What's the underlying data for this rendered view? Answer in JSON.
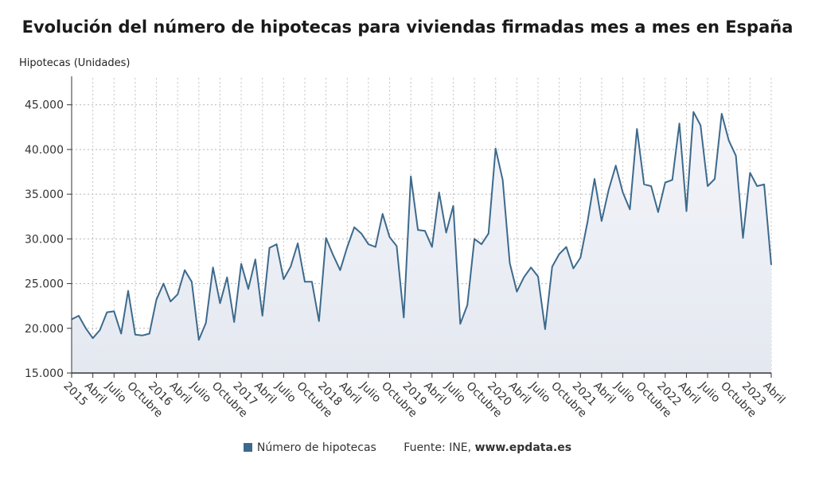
{
  "chart_data": {
    "type": "area",
    "title": "Evolución del número de hipotecas para viviendas firmadas mes a mes en España",
    "ylabel": "Hipotecas (Unidades)",
    "ylim": [
      15000,
      48000
    ],
    "yticks": [
      {
        "value": 15000,
        "label": "15.000"
      },
      {
        "value": 20000,
        "label": "20.000"
      },
      {
        "value": 25000,
        "label": "25.000"
      },
      {
        "value": 30000,
        "label": "30.000"
      },
      {
        "value": 35000,
        "label": "35.000"
      },
      {
        "value": 40000,
        "label": "40.000"
      },
      {
        "value": 45000,
        "label": "45.000"
      }
    ],
    "xticks": [
      {
        "index": 0,
        "label": "2015"
      },
      {
        "index": 3,
        "label": "Abril"
      },
      {
        "index": 6,
        "label": "Julio"
      },
      {
        "index": 9,
        "label": "Octubre"
      },
      {
        "index": 12,
        "label": "2016"
      },
      {
        "index": 15,
        "label": "Abril"
      },
      {
        "index": 18,
        "label": "Julio"
      },
      {
        "index": 21,
        "label": "Octubre"
      },
      {
        "index": 24,
        "label": "2017"
      },
      {
        "index": 27,
        "label": "Abril"
      },
      {
        "index": 30,
        "label": "Julio"
      },
      {
        "index": 33,
        "label": "Octubre"
      },
      {
        "index": 36,
        "label": "2018"
      },
      {
        "index": 39,
        "label": "Abril"
      },
      {
        "index": 42,
        "label": "Julio"
      },
      {
        "index": 45,
        "label": "Octubre"
      },
      {
        "index": 48,
        "label": "2019"
      },
      {
        "index": 51,
        "label": "Abril"
      },
      {
        "index": 54,
        "label": "Julio"
      },
      {
        "index": 57,
        "label": "Octubre"
      },
      {
        "index": 60,
        "label": "2020"
      },
      {
        "index": 63,
        "label": "Abril"
      },
      {
        "index": 66,
        "label": "Julio"
      },
      {
        "index": 69,
        "label": "Octubre"
      },
      {
        "index": 72,
        "label": "2021"
      },
      {
        "index": 75,
        "label": "Abril"
      },
      {
        "index": 78,
        "label": "Julio"
      },
      {
        "index": 81,
        "label": "Octubre"
      },
      {
        "index": 84,
        "label": "2022"
      },
      {
        "index": 87,
        "label": "Abril"
      },
      {
        "index": 90,
        "label": "Julio"
      },
      {
        "index": 93,
        "label": "Octubre"
      },
      {
        "index": 96,
        "label": "2023"
      },
      {
        "index": 99,
        "label": "Abril"
      }
    ],
    "series": [
      {
        "name": "Número de hipotecas",
        "color": "#3d6a8c",
        "values": [
          21000,
          21400,
          20000,
          18900,
          19800,
          21800,
          21900,
          19400,
          24200,
          19300,
          19200,
          19400,
          23200,
          25000,
          23000,
          23800,
          26500,
          25200,
          18700,
          20600,
          26800,
          22800,
          25700,
          20700,
          27200,
          24400,
          27700,
          21400,
          29000,
          29400,
          25500,
          26900,
          29500,
          25200,
          25200,
          20800,
          30100,
          28200,
          26500,
          29100,
          31300,
          30600,
          29400,
          29100,
          32800,
          30200,
          29200,
          21200,
          37000,
          31000,
          30900,
          29100,
          35200,
          30700,
          33700,
          20500,
          22600,
          30000,
          29400,
          30600,
          40100,
          36600,
          27300,
          24100,
          25700,
          26800,
          25800,
          19900,
          26900,
          28300,
          29100,
          26700,
          27900,
          31900,
          36700,
          32000,
          35500,
          38200,
          35200,
          33300,
          42300,
          36100,
          35900,
          33000,
          36300,
          36600,
          42900,
          33100,
          44200,
          42700,
          35900,
          36700,
          44000,
          41000,
          39300,
          30100,
          37400,
          35900,
          36100,
          27100
        ]
      }
    ],
    "legend_placement": "bottom",
    "grid": true
  },
  "source_label": "Fuente: INE,",
  "source_site": "www.epdata.es"
}
